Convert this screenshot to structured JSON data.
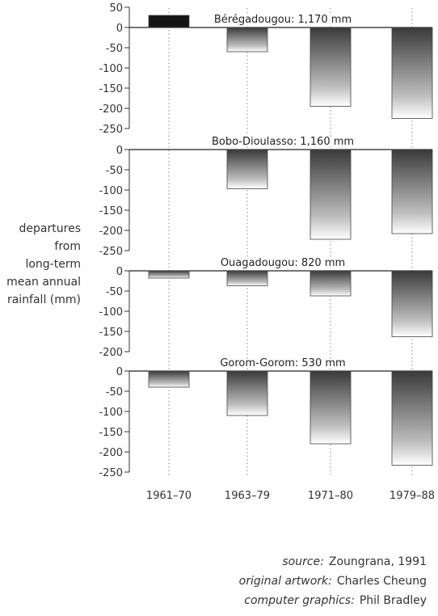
{
  "chart_data": {
    "type": "bar",
    "categories": [
      "1961–70",
      "1963–79",
      "1971–80",
      "1979–88"
    ],
    "ylabel_lines": [
      "departures",
      "from",
      "long-term",
      "mean annual",
      "rainfall (mm)"
    ],
    "panels": [
      {
        "title": "Bérégadougou: 1,170 mm",
        "yticks": [
          50,
          0,
          -50,
          -100,
          -150,
          -200,
          -250
        ],
        "ylim": [
          -250,
          50
        ],
        "values": [
          30,
          -60,
          -195,
          -225
        ]
      },
      {
        "title": "Bobo-Dioulasso: 1,160 mm",
        "yticks": [
          0,
          -50,
          -100,
          -150,
          -200,
          -250
        ],
        "ylim": [
          -250,
          0
        ],
        "values": [
          0,
          -97,
          -222,
          -208
        ]
      },
      {
        "title": "Ouagadougou: 820 mm",
        "yticks": [
          0,
          -50,
          -100,
          -150,
          -200
        ],
        "ylim": [
          -200,
          0
        ],
        "values": [
          -18,
          -37,
          -62,
          -163
        ]
      },
      {
        "title": "Gorom-Gorom: 530 mm",
        "yticks": [
          0,
          -50,
          -100,
          -150,
          -200,
          -250
        ],
        "ylim": [
          -250,
          0
        ],
        "values": [
          -40,
          -110,
          -180,
          -233
        ]
      }
    ]
  },
  "credits": [
    {
      "label": "source:",
      "value": "Zoungrana, 1991"
    },
    {
      "label": "original artwork:",
      "value": "Charles Cheung"
    },
    {
      "label": "computer graphics:",
      "value": "Phil Bradley"
    }
  ]
}
